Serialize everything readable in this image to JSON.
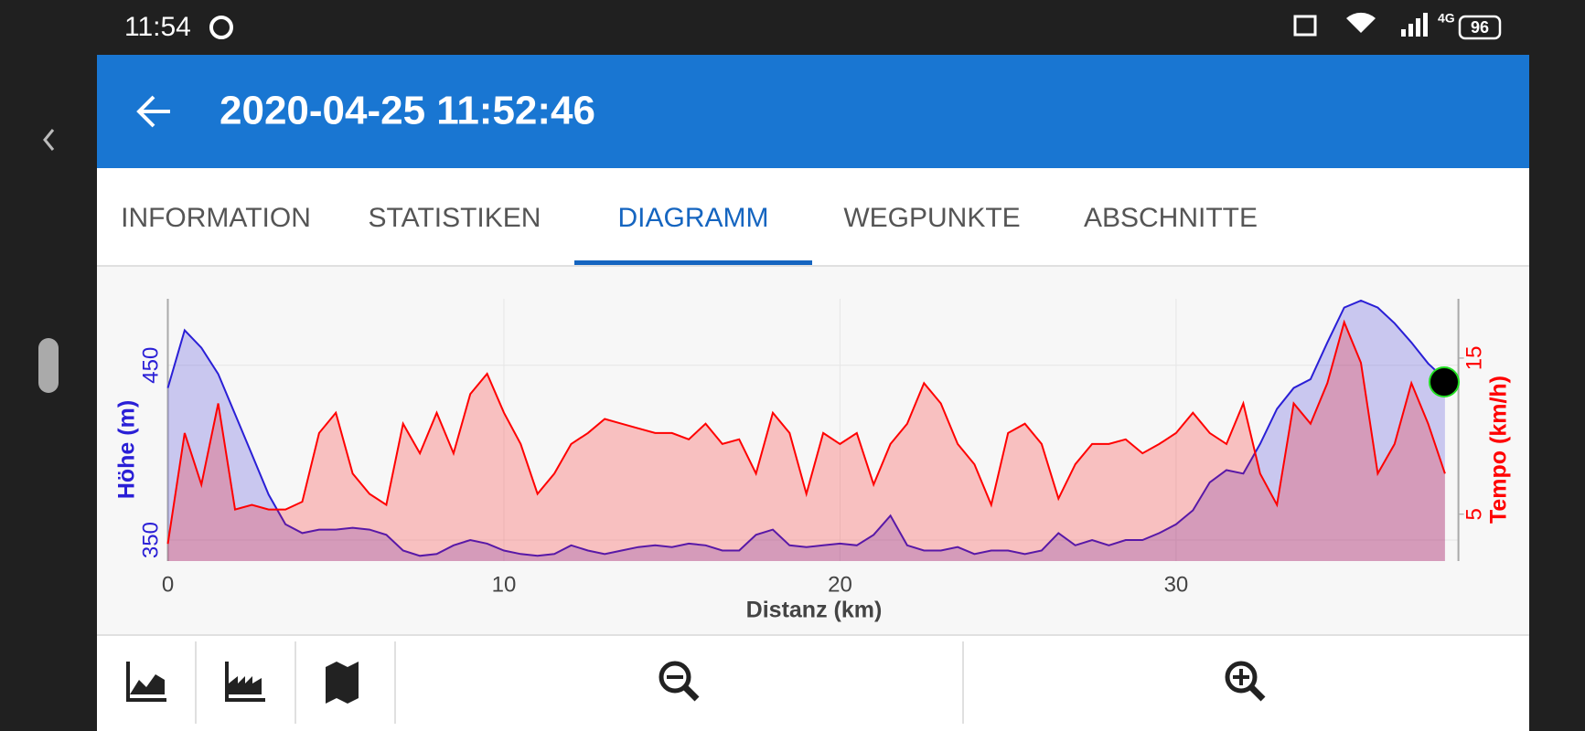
{
  "status_bar": {
    "time": "11:54",
    "network": "4G",
    "battery": "96"
  },
  "app_bar": {
    "title": "2020-04-25 11:52:46"
  },
  "tabs": [
    {
      "label": "INFORMATION"
    },
    {
      "label": "STATISTIKEN"
    },
    {
      "label": "DIAGRAMM",
      "active": true
    },
    {
      "label": "WEGPUNKTE"
    },
    {
      "label": "ABSCHNITTE"
    }
  ],
  "chart_data": {
    "type": "area",
    "xlabel": "Distanz (km)",
    "ylabel": "Höhe (m)",
    "y2label": "Tempo (km/h)",
    "x": [
      0,
      0.5,
      1,
      1.5,
      2,
      2.5,
      3,
      3.5,
      4,
      4.5,
      5,
      5.5,
      6,
      6.5,
      7,
      7.5,
      8,
      8.5,
      9,
      9.5,
      10,
      10.5,
      11,
      11.5,
      12,
      12.5,
      13,
      13.5,
      14,
      14.5,
      15,
      15.5,
      16,
      16.5,
      17,
      17.5,
      18,
      18.5,
      19,
      19.5,
      20,
      20.5,
      21,
      21.5,
      22,
      22.5,
      23,
      23.5,
      24,
      24.5,
      25,
      25.5,
      26,
      26.5,
      27,
      27.5,
      28,
      28.5,
      29,
      29.5,
      30,
      30.5,
      31,
      31.5,
      32,
      32.5,
      33,
      33.5,
      34,
      34.5,
      35,
      35.5,
      36,
      36.5,
      37,
      37.5,
      38
    ],
    "series": [
      {
        "name": "Höhe (m)",
        "color": "#2a1fd6",
        "values": [
          437,
          470,
          460,
          445,
          422,
          399,
          376,
          359,
          354,
          356,
          356,
          357,
          356,
          353,
          344,
          341,
          342,
          347,
          350,
          348,
          344,
          342,
          341,
          342,
          347,
          344,
          342,
          344,
          346,
          347,
          346,
          348,
          347,
          344,
          344,
          353,
          356,
          347,
          346,
          347,
          348,
          347,
          353,
          364,
          347,
          344,
          344,
          346,
          342,
          344,
          344,
          342,
          344,
          354,
          347,
          350,
          347,
          350,
          350,
          354,
          359,
          367,
          383,
          390,
          388,
          405,
          425,
          437,
          442,
          463,
          483,
          487,
          483,
          474,
          463,
          451,
          442
        ]
      },
      {
        "name": "Tempo (km/h)",
        "color": "#ff0000",
        "axis": "y2",
        "values": [
          3.1,
          10.2,
          6.9,
          12.1,
          5.3,
          5.6,
          5.3,
          5.3,
          5.8,
          10.2,
          11.5,
          7.6,
          6.3,
          5.6,
          10.8,
          8.9,
          11.5,
          8.9,
          12.7,
          14.0,
          11.5,
          9.5,
          6.3,
          7.6,
          9.5,
          10.2,
          11.1,
          10.8,
          10.5,
          10.2,
          10.2,
          9.8,
          10.8,
          9.5,
          9.8,
          7.6,
          11.5,
          10.2,
          6.3,
          10.2,
          9.5,
          10.2,
          6.9,
          9.5,
          10.8,
          13.4,
          12.1,
          9.5,
          8.2,
          5.6,
          10.2,
          10.8,
          9.5,
          6.0,
          8.2,
          9.5,
          9.5,
          9.8,
          8.9,
          9.5,
          10.2,
          11.5,
          10.2,
          9.5,
          12.1,
          7.6,
          5.6,
          12.1,
          10.8,
          13.4,
          17.3,
          14.7,
          7.6,
          9.5,
          13.4,
          10.8,
          7.6
        ]
      }
    ],
    "xlim": [
      0,
      38.4
    ],
    "xticks": [
      0,
      10,
      20,
      30
    ],
    "ylim": [
      338,
      488
    ],
    "yticks": [
      350,
      450
    ],
    "y2lim": [
      2,
      18.8
    ],
    "y2ticks": [
      5,
      15
    ],
    "grid": true
  }
}
